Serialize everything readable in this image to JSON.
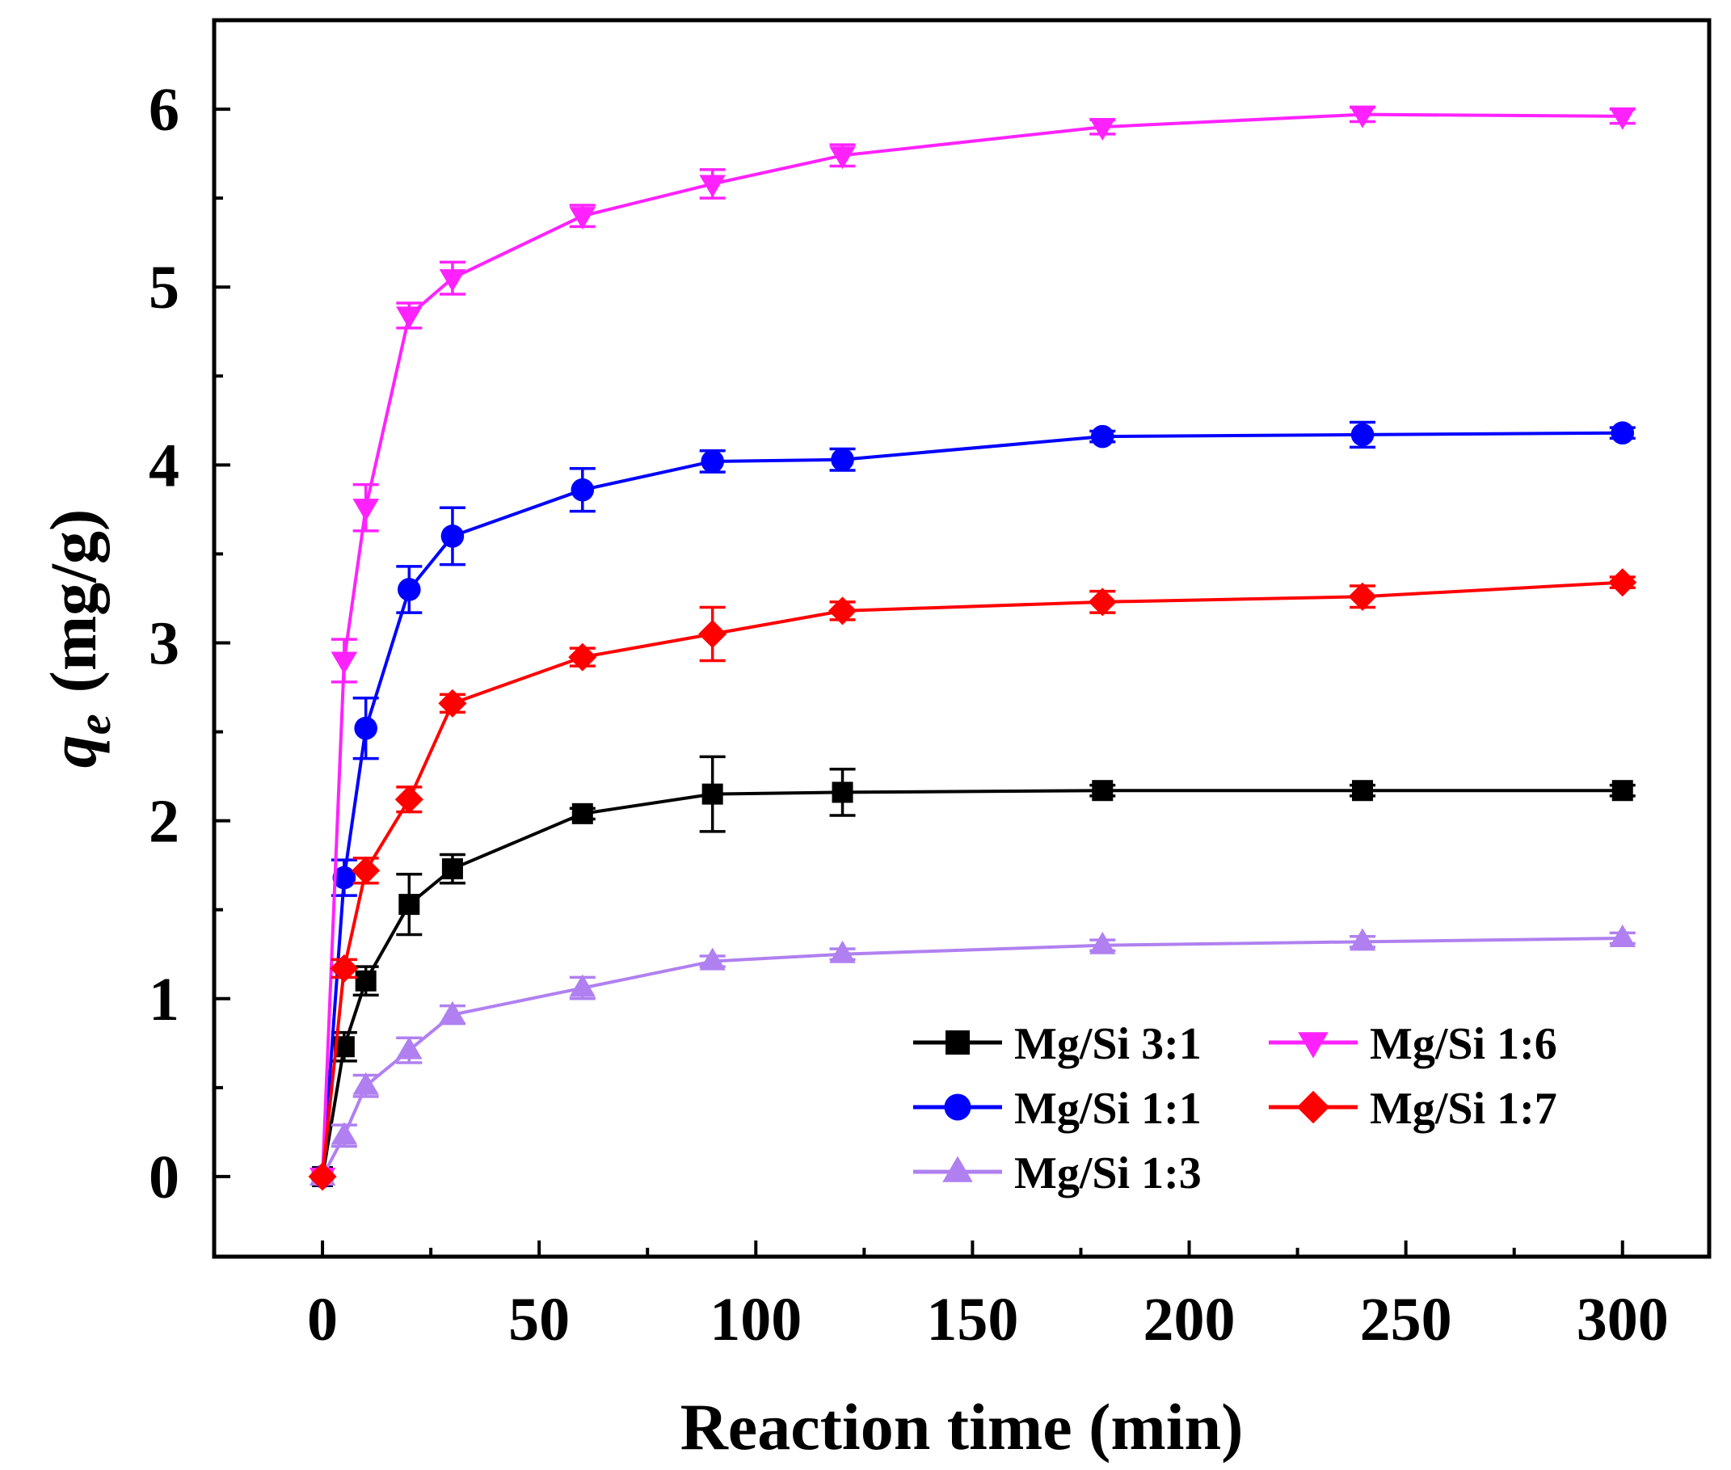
{
  "chart_data": {
    "type": "line",
    "title": "",
    "xlabel": "Reaction time (min)",
    "ylabel_symbol": "q",
    "ylabel_subscript": "e",
    "ylabel_unit": "(mg/g)",
    "xlim": [
      -25,
      320
    ],
    "ylim": [
      -0.45,
      6.5
    ],
    "xticks": [
      0,
      50,
      100,
      150,
      200,
      250,
      300
    ],
    "yticks": [
      0,
      1,
      2,
      3,
      4,
      5,
      6
    ],
    "xtick_labels": [
      "0",
      "50",
      "100",
      "150",
      "200",
      "250",
      "300"
    ],
    "ytick_labels": [
      "0",
      "1",
      "2",
      "3",
      "4",
      "5",
      "6"
    ],
    "legend_position": "lower-right",
    "x": [
      0,
      5,
      10,
      20,
      30,
      60,
      90,
      120,
      180,
      240,
      300
    ],
    "series": [
      {
        "name": "Mg/Si 3:1",
        "color": "#000000",
        "marker": "square",
        "values": [
          0,
          0.73,
          1.1,
          1.53,
          1.73,
          2.04,
          2.15,
          2.16,
          2.17,
          2.17,
          2.17
        ],
        "errors": [
          0,
          0.08,
          0.08,
          0.17,
          0.08,
          0.03,
          0.21,
          0.13,
          0.03,
          0.03,
          0.03
        ]
      },
      {
        "name": "Mg/Si 1:1",
        "color": "#0000ff",
        "marker": "circle",
        "values": [
          0,
          1.68,
          2.52,
          3.3,
          3.6,
          3.86,
          4.02,
          4.03,
          4.16,
          4.17,
          4.18
        ],
        "errors": [
          0,
          0.1,
          0.17,
          0.13,
          0.16,
          0.12,
          0.06,
          0.06,
          0.03,
          0.07,
          0.03
        ]
      },
      {
        "name": "Mg/Si 1:3",
        "color": "#b080f0",
        "marker": "triangle-up",
        "values": [
          0,
          0.23,
          0.51,
          0.71,
          0.91,
          1.06,
          1.21,
          1.25,
          1.3,
          1.32,
          1.34
        ],
        "errors": [
          0,
          0.06,
          0.06,
          0.07,
          0.05,
          0.06,
          0.03,
          0.03,
          0.03,
          0.03,
          0.03
        ]
      },
      {
        "name": "Mg/Si 1:6",
        "color": "#ff22ff",
        "marker": "triangle-down",
        "values": [
          0,
          2.9,
          3.76,
          4.84,
          5.05,
          5.4,
          5.58,
          5.74,
          5.9,
          5.97,
          5.96
        ],
        "errors": [
          0,
          0.12,
          0.13,
          0.07,
          0.09,
          0.06,
          0.08,
          0.06,
          0.04,
          0.04,
          0.04
        ]
      },
      {
        "name": "Mg/Si 1:7",
        "color": "#ff0000",
        "marker": "diamond",
        "values": [
          0,
          1.17,
          1.72,
          2.12,
          2.66,
          2.92,
          3.05,
          3.18,
          3.23,
          3.26,
          3.34
        ],
        "errors": [
          0,
          0.05,
          0.07,
          0.07,
          0.05,
          0.05,
          0.15,
          0.05,
          0.06,
          0.06,
          0.03
        ]
      }
    ],
    "legend_order": [
      0,
      3,
      1,
      4,
      2
    ]
  }
}
